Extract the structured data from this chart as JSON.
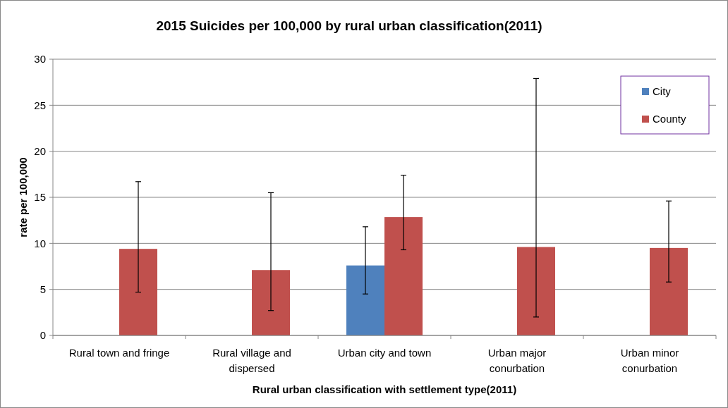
{
  "chart_data": {
    "type": "bar",
    "title": "2015 Suicides per 100,000 by rural urban classification(2011)",
    "xlabel": "Rural urban classification  with settlement type(2011)",
    "ylabel": "rate per 100,000",
    "categories": [
      "Rural town and fringe",
      "Rural village and dispersed",
      "Urban city and town",
      "Urban major conurbation",
      "Urban minor conurbation"
    ],
    "series": [
      {
        "name": "City",
        "color": "#4f81bd",
        "values": [
          null,
          null,
          7.6,
          null,
          null
        ],
        "errors": [
          null,
          null,
          [
            4.5,
            11.8
          ],
          null,
          null
        ]
      },
      {
        "name": "County",
        "color": "#c0504d",
        "values": [
          9.4,
          7.1,
          12.85,
          9.6,
          9.5
        ],
        "errors": [
          [
            4.7,
            16.7
          ],
          [
            2.7,
            15.5
          ],
          [
            9.3,
            17.4
          ],
          [
            2.0,
            27.9
          ],
          [
            5.8,
            14.6
          ]
        ]
      }
    ],
    "ylim": [
      0,
      30
    ],
    "yticks": [
      0,
      5,
      10,
      15,
      20,
      25,
      30
    ],
    "grid": "y",
    "legend": "top right"
  }
}
